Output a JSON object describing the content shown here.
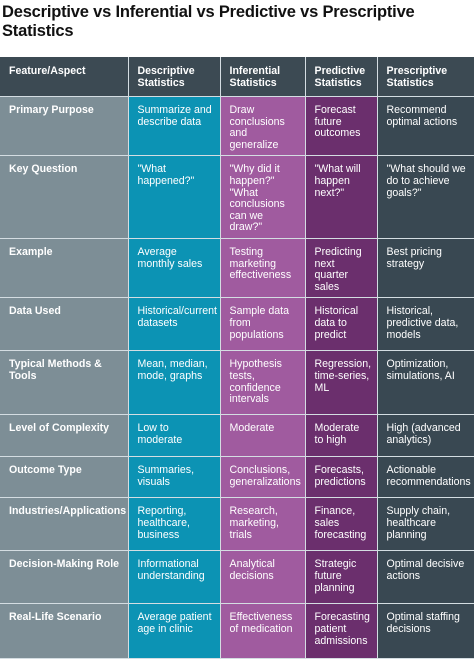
{
  "title": "Descriptive vs Inferential vs Predictive vs Prescriptive Statistics",
  "colors": {
    "header": "#3c4a53",
    "feature_column": "#7d8e96",
    "descriptive": "#0c93b4",
    "inferential": "#a05b9f",
    "predictive": "#6b2f6d",
    "prescriptive": "#394852"
  },
  "headers": [
    "Feature/Aspect",
    "Descriptive Statistics",
    "Inferential Statistics",
    "Predictive Statistics",
    "Prescriptive Statistics"
  ],
  "rows": [
    [
      "Primary Purpose",
      "Summarize and describe data",
      "Draw conclusions and generalize",
      "Forecast future outcomes",
      "Recommend optimal actions"
    ],
    [
      "Key Question",
      "\"What happened?\"",
      "\"Why did it happen?\" \"What conclusions can we draw?\"",
      "\"What will happen next?\"",
      "\"What should we do to achieve goals?\""
    ],
    [
      "Example",
      "Average monthly sales",
      "Testing marketing effectiveness",
      "Predicting next quarter sales",
      "Best pricing strategy"
    ],
    [
      "Data Used",
      "Historical/current datasets",
      "Sample data from populations",
      "Historical data to predict",
      "Historical, predictive data, models"
    ],
    [
      "Typical Methods & Tools",
      "Mean, median, mode, graphs",
      "Hypothesis tests, confidence intervals",
      "Regression, time-series, ML",
      "Optimization, simulations, AI"
    ],
    [
      "Level of Complexity",
      "Low to moderate",
      "Moderate",
      "Moderate to high",
      "High (advanced analytics)"
    ],
    [
      "Outcome Type",
      "Summaries, visuals",
      "Conclusions, generalizations",
      "Forecasts, predictions",
      "Actionable recommendations"
    ],
    [
      "Industries/Applications",
      "Reporting, healthcare, business",
      "Research, marketing, trials",
      "Finance, sales forecasting",
      "Supply chain, healthcare planning"
    ],
    [
      "Decision-Making Role",
      "Informational understanding",
      "Analytical decisions",
      "Strategic future planning",
      "Optimal decisive actions"
    ],
    [
      "Real-Life Scenario",
      "Average patient age in clinic",
      "Effectiveness of medication",
      "Forecasting patient admissions",
      "Optimal staffing decisions"
    ]
  ]
}
